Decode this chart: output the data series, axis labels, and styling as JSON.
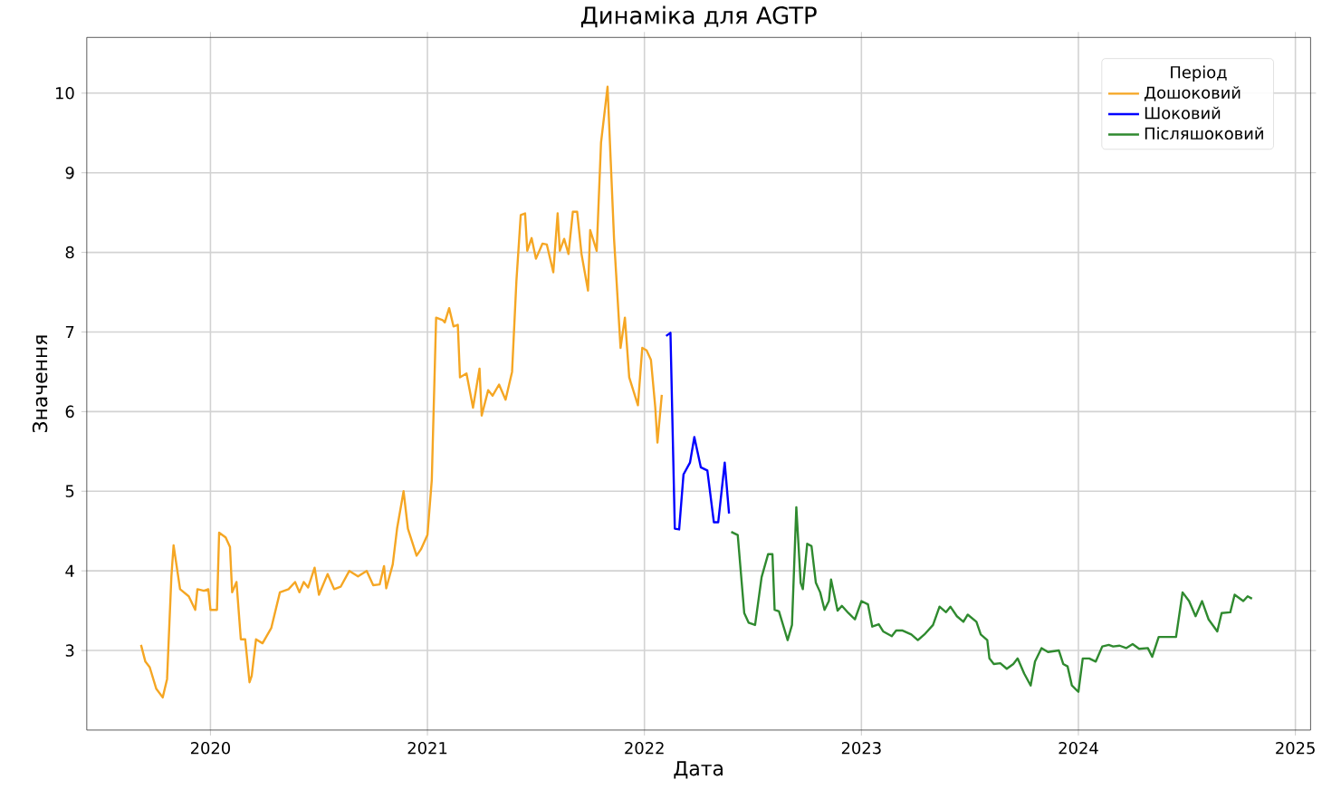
{
  "chart_data": {
    "type": "line",
    "title": "Динаміка для AGTP",
    "xlabel": "Дата",
    "ylabel": "Значення",
    "legend_title": "Період",
    "legend": "top right",
    "grid": true,
    "xlim": [
      2019.43,
      2025.07
    ],
    "ylim": [
      2.0,
      10.7
    ],
    "xticks": [
      2020,
      2021,
      2022,
      2023,
      2024,
      2025
    ],
    "yticks": [
      3,
      4,
      5,
      6,
      7,
      8,
      9,
      10
    ],
    "series": [
      {
        "name": "Дошоковий",
        "color": "#f5a623",
        "x": [
          2019.68,
          2019.7,
          2019.72,
          2019.75,
          2019.78,
          2019.8,
          2019.82,
          2019.83,
          2019.86,
          2019.9,
          2019.93,
          2019.94,
          2019.97,
          2019.99,
          2020.0,
          2020.03,
          2020.04,
          2020.07,
          2020.09,
          2020.1,
          2020.12,
          2020.14,
          2020.16,
          2020.18,
          2020.19,
          2020.21,
          2020.24,
          2020.28,
          2020.32,
          2020.36,
          2020.39,
          2020.41,
          2020.43,
          2020.45,
          2020.48,
          2020.5,
          2020.54,
          2020.57,
          2020.6,
          2020.64,
          2020.68,
          2020.72,
          2020.75,
          2020.78,
          2020.8,
          2020.81,
          2020.84,
          2020.86,
          2020.89,
          2020.91,
          2020.95,
          2020.97,
          2021.0,
          2021.02,
          2021.04,
          2021.07,
          2021.08,
          2021.1,
          2021.12,
          2021.14,
          2021.15,
          2021.18,
          2021.21,
          2021.24,
          2021.25,
          2021.28,
          2021.3,
          2021.33,
          2021.36,
          2021.39,
          2021.41,
          2021.43,
          2021.45,
          2021.46,
          2021.48,
          2021.5,
          2021.53,
          2021.55,
          2021.58,
          2021.6,
          2021.61,
          2021.63,
          2021.65,
          2021.67,
          2021.69,
          2021.71,
          2021.74,
          2021.75,
          2021.78,
          2021.8,
          2021.83,
          2021.86,
          2021.89,
          2021.91,
          2021.93,
          2021.97,
          2021.99,
          2022.01,
          2022.03,
          2022.05,
          2022.06,
          2022.08
        ],
        "values": [
          3.07,
          2.86,
          2.79,
          2.52,
          2.41,
          2.64,
          3.93,
          4.32,
          3.77,
          3.68,
          3.51,
          3.77,
          3.75,
          3.77,
          3.51,
          3.51,
          4.48,
          4.42,
          4.3,
          3.73,
          3.86,
          3.14,
          3.14,
          2.6,
          2.68,
          3.14,
          3.09,
          3.28,
          3.73,
          3.77,
          3.86,
          3.73,
          3.86,
          3.79,
          4.04,
          3.7,
          3.96,
          3.77,
          3.8,
          4.0,
          3.93,
          4.0,
          3.82,
          3.83,
          4.06,
          3.78,
          4.08,
          4.53,
          5.0,
          4.53,
          4.19,
          4.27,
          4.45,
          5.14,
          7.18,
          7.15,
          7.12,
          7.3,
          7.07,
          7.09,
          6.43,
          6.48,
          6.05,
          6.54,
          5.95,
          6.27,
          6.2,
          6.34,
          6.15,
          6.5,
          7.64,
          8.47,
          8.49,
          8.02,
          8.18,
          7.92,
          8.11,
          8.1,
          7.75,
          8.49,
          8.02,
          8.17,
          7.98,
          8.51,
          8.51,
          7.98,
          7.52,
          8.28,
          8.02,
          9.38,
          10.08,
          8.17,
          6.8,
          7.18,
          6.43,
          6.08,
          6.8,
          6.77,
          6.65,
          6.05,
          5.61,
          6.21
        ]
      },
      {
        "name": "Шоковий",
        "color": "#0000ff",
        "x": [
          2022.1,
          2022.12,
          2022.14,
          2022.16,
          2022.18,
          2022.21,
          2022.23,
          2022.26,
          2022.29,
          2022.32,
          2022.34,
          2022.37,
          2022.39
        ],
        "values": [
          6.95,
          6.99,
          4.53,
          4.52,
          5.21,
          5.36,
          5.68,
          5.3,
          5.26,
          4.61,
          4.61,
          5.36,
          4.72
        ]
      },
      {
        "name": "Післяшоковий",
        "color": "#2f8a2f",
        "x": [
          2022.4,
          2022.43,
          2022.46,
          2022.48,
          2022.51,
          2022.54,
          2022.57,
          2022.59,
          2022.6,
          2022.62,
          2022.66,
          2022.68,
          2022.7,
          2022.72,
          2022.73,
          2022.75,
          2022.77,
          2022.79,
          2022.81,
          2022.83,
          2022.85,
          2022.86,
          2022.89,
          2022.91,
          2022.94,
          2022.97,
          2023.0,
          2023.03,
          2023.05,
          2023.08,
          2023.1,
          2023.14,
          2023.16,
          2023.19,
          2023.23,
          2023.26,
          2023.29,
          2023.33,
          2023.36,
          2023.39,
          2023.41,
          2023.44,
          2023.47,
          2023.49,
          2023.53,
          2023.55,
          2023.58,
          2023.59,
          2023.61,
          2023.64,
          2023.67,
          2023.7,
          2023.72,
          2023.75,
          2023.78,
          2023.8,
          2023.83,
          2023.86,
          2023.91,
          2023.93,
          2023.95,
          2023.97,
          2024.0,
          2024.02,
          2024.05,
          2024.08,
          2024.11,
          2024.14,
          2024.16,
          2024.19,
          2024.22,
          2024.25,
          2024.28,
          2024.32,
          2024.34,
          2024.37,
          2024.41,
          2024.45,
          2024.48,
          2024.51,
          2024.54,
          2024.57,
          2024.6,
          2024.64,
          2024.66,
          2024.7,
          2024.72,
          2024.76,
          2024.78,
          2024.8
        ],
        "values": [
          4.49,
          4.45,
          3.47,
          3.35,
          3.32,
          3.92,
          4.21,
          4.21,
          3.51,
          3.49,
          3.13,
          3.32,
          4.8,
          3.85,
          3.77,
          4.34,
          4.31,
          3.85,
          3.73,
          3.51,
          3.62,
          3.89,
          3.5,
          3.56,
          3.47,
          3.39,
          3.62,
          3.58,
          3.3,
          3.33,
          3.24,
          3.18,
          3.25,
          3.25,
          3.2,
          3.13,
          3.2,
          3.32,
          3.55,
          3.48,
          3.55,
          3.43,
          3.36,
          3.45,
          3.36,
          3.2,
          3.13,
          2.9,
          2.83,
          2.84,
          2.77,
          2.83,
          2.9,
          2.71,
          2.56,
          2.86,
          3.03,
          2.98,
          3.0,
          2.83,
          2.8,
          2.56,
          2.48,
          2.9,
          2.9,
          2.86,
          3.05,
          3.07,
          3.05,
          3.06,
          3.03,
          3.08,
          3.02,
          3.03,
          2.92,
          3.17,
          3.17,
          3.17,
          3.73,
          3.62,
          3.43,
          3.62,
          3.39,
          3.24,
          3.47,
          3.48,
          3.7,
          3.62,
          3.68,
          3.65
        ]
      }
    ]
  }
}
